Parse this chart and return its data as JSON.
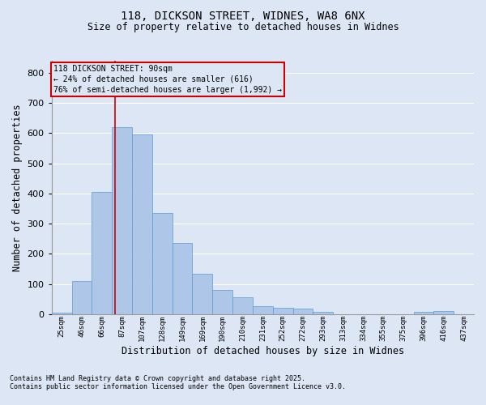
{
  "title_line1": "118, DICKSON STREET, WIDNES, WA8 6NX",
  "title_line2": "Size of property relative to detached houses in Widnes",
  "xlabel": "Distribution of detached houses by size in Widnes",
  "ylabel": "Number of detached properties",
  "categories": [
    "25sqm",
    "46sqm",
    "66sqm",
    "87sqm",
    "107sqm",
    "128sqm",
    "149sqm",
    "169sqm",
    "190sqm",
    "210sqm",
    "231sqm",
    "252sqm",
    "272sqm",
    "293sqm",
    "313sqm",
    "334sqm",
    "355sqm",
    "375sqm",
    "396sqm",
    "416sqm",
    "437sqm"
  ],
  "values": [
    5,
    110,
    405,
    620,
    595,
    335,
    237,
    135,
    80,
    55,
    25,
    20,
    18,
    7,
    0,
    0,
    0,
    0,
    8,
    10,
    0
  ],
  "bar_color": "#aec6e8",
  "bar_edge_color": "#5b9bd5",
  "bg_color": "#dce6f5",
  "grid_color": "#ffffff",
  "red_line_x": 2.65,
  "red_line_color": "#cc0000",
  "annotation_line1": "118 DICKSON STREET: 90sqm",
  "annotation_line2": "← 24% of detached houses are smaller (616)",
  "annotation_line3": "76% of semi-detached houses are larger (1,992) →",
  "annotation_box_color": "#cc0000",
  "footnote1": "Contains HM Land Registry data © Crown copyright and database right 2025.",
  "footnote2": "Contains public sector information licensed under the Open Government Licence v3.0.",
  "ylim": [
    0,
    840
  ],
  "yticks": [
    0,
    100,
    200,
    300,
    400,
    500,
    600,
    700,
    800
  ]
}
